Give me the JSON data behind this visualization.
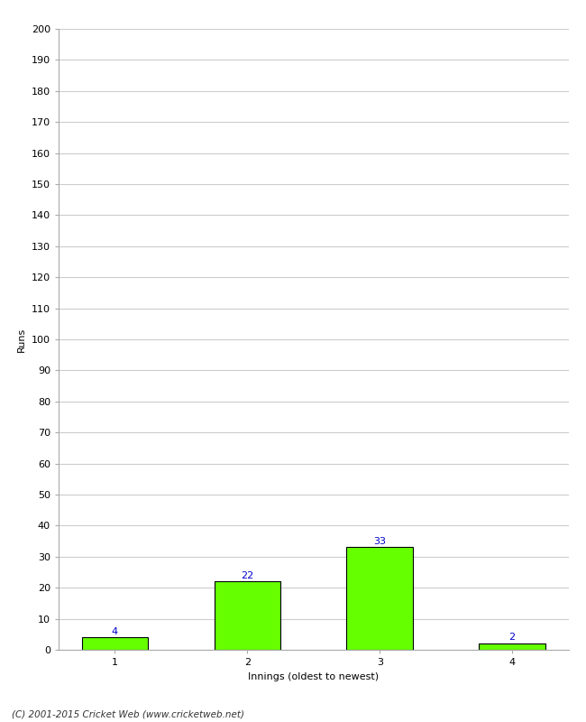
{
  "categories": [
    1,
    2,
    3,
    4
  ],
  "values": [
    4,
    22,
    33,
    2
  ],
  "bar_color": "#66ff00",
  "bar_edge_color": "#000000",
  "ylabel": "Runs",
  "xlabel": "Innings (oldest to newest)",
  "ylim": [
    0,
    200
  ],
  "yticks": [
    0,
    10,
    20,
    30,
    40,
    50,
    60,
    70,
    80,
    90,
    100,
    110,
    120,
    130,
    140,
    150,
    160,
    170,
    180,
    190,
    200
  ],
  "label_color": "#0000cc",
  "label_fontsize": 8,
  "axis_fontsize": 8,
  "tick_fontsize": 8,
  "footer": "(C) 2001-2015 Cricket Web (www.cricketweb.net)",
  "background_color": "#ffffff",
  "grid_color": "#cccccc"
}
